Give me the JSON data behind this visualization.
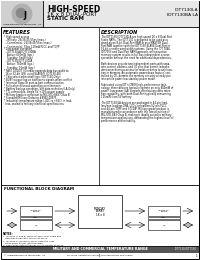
{
  "title_part_1": "IDT7130LA",
  "title_part_2": "IDT7130BA LA",
  "header_line1": "HIGH-SPEED",
  "header_line2": "1K x 8 DUAL-PORT",
  "header_line3": "STATIC RAM",
  "bg_color": "#ffffff",
  "features_title": "FEATURES",
  "features": [
    "* High speed access",
    "  --Military: 25/35/45/55ns (max.)",
    "  --Commercial: 25/35/45/55ns (max.)",
    "  --Commercial: 55ns 110mA PLCC and TQFP",
    "* Low power operation",
    "  --IDT7130LA/IDT7130BA",
    "    Active: 600mW (typ.)",
    "    Standby: 5mW (typ.)",
    "  --IDT7130/IDT7130LA",
    "    Active: 750mW (typ.)",
    "    Standby: 10mW (typ.)",
    "* FAST 10/20/T I/O ready expands data bus width to",
    "  16 or 32-bit (48) using SLAVE/S (IDT130-48)",
    "* Chip select arbitration logic (IDT7130-Only)",
    "* BUSY output flag on both ports signals when conflict",
    "* Interrupt flags for port-to-port communication",
    "* Fully asynchronous operation on either port",
    "* Battery backup operation--VIH data retention (LA-Only)",
    "* TTL compatible, single 5V +10% power supply",
    "* Military product compliant to MIL-STD-883, Class B",
    "* Standard Military Drawing #8992-00975",
    "* Industrial temperature range (-40C to +85C) in lead-",
    "  less, sealed to military electrical specifications"
  ],
  "description_title": "DESCRIPTION",
  "desc_lines": [
    "The IDT7130/IDT7130LA are high-speed 1K x 8 Dual-Port",
    "Static RAMs. The IDT7130 is designed to be used as a",
    "stand-alone 8-bit Dual-Port RAM or as a MASTER Dual-",
    "Port RAM together with the IDT7130 SLAVE Dual-Port in",
    "16-bit or more word width systems. Using the IDT 7046,",
    "IDT7053 and Dual-Port RAM approach, an innovative",
    "memory system results in full bus independent access",
    "operation without the need for additional dependencies.",
    "",
    "Both devices provide two independent ports with sepa-",
    "rate control, address, and I/O pins that permit indepen-",
    "dent asynchronous access for reads or writes to any loca-",
    "tion in memory. An automatic power-down feature, con-",
    "trolled by CE, permits the memory circuitry already put",
    "into active power-low-standby power mode.",
    "",
    "Fabricated using IDT's CMOS high-performance tech-",
    "nology, these devices typically operate on only 600mW of",
    "power. Low power (LA) versions offer battery data reten-",
    "tion capability, with both Dual-Port typically consuming",
    "125mW from 5V battery.",
    "",
    "The IDT7130/LA devices are packaged in 44-pin lead-",
    "less/non-leadless DPA, LCCs, or leadless 52-pin PLCC",
    "and 44-pin TQFP and 37CDIP. Military grade product is",
    "manufactured in accordance with the latest revision of",
    "MIL-STD-883 Class B, making it ideally suited to military",
    "temperature applications, demanding the highest level of",
    "performance and reliability."
  ],
  "block_title": "FUNCTIONAL BLOCK DIAGRAM",
  "notes": [
    "NOTES:",
    "1. IDT7130 (A and B) SRAM is taken from single and",
    "   becomes production version at IDT74.",
    "2. IDT7130+A (B and C): BUSY Output is High",
    "   Open-Drain output (positive logic).",
    "3. Open-Drain output requires pullup resistor at IDT74."
  ],
  "footer_bar": "MILITARY AND COMMERCIAL TEMPERATURE RANGE",
  "footer_right": "IDT7130/IDT7130",
  "copyright": "Integrated Device Technology, Inc.",
  "page": "1"
}
